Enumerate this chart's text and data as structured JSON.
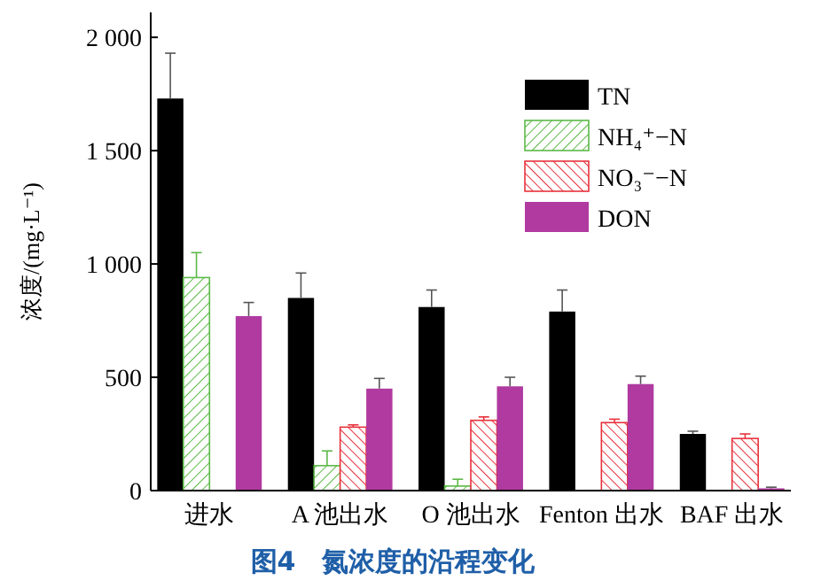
{
  "chart_data": {
    "type": "bar",
    "title": "图4　氮浓度的沿程变化",
    "ylabel": "浓度/(mg·L⁻¹)",
    "categories": [
      "进水",
      "A 池出水",
      "O 池出水",
      "Fenton 出水",
      "BAF 出水"
    ],
    "series": [
      {
        "name": "TN",
        "color": "#000000",
        "values": [
          1730,
          850,
          810,
          790,
          250
        ],
        "errors": [
          200,
          110,
          75,
          95,
          12
        ]
      },
      {
        "name": "NH₄⁺−N",
        "color": "#5cb847",
        "values": [
          940,
          110,
          20,
          null,
          null
        ],
        "errors": [
          110,
          65,
          30,
          null,
          null
        ]
      },
      {
        "name": "NO₃⁻−N",
        "color": "#e8323c",
        "values": [
          null,
          280,
          310,
          300,
          230
        ],
        "errors": [
          null,
          10,
          15,
          15,
          20
        ]
      },
      {
        "name": "DON",
        "color": "#b03aa0",
        "values": [
          770,
          450,
          460,
          470,
          10
        ],
        "errors": [
          60,
          45,
          40,
          35,
          5
        ]
      }
    ],
    "ylim": [
      0,
      2110
    ],
    "yticks": [
      0,
      500,
      {
        "value": 1000,
        "label": "1 000"
      },
      {
        "value": 1500,
        "label": "1 500"
      },
      {
        "value": 2000,
        "label": "2 000"
      }
    ],
    "grid": false,
    "legend": "top right"
  }
}
